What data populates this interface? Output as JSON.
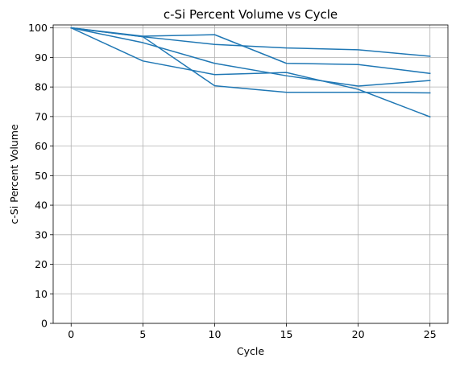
{
  "chart_data": {
    "type": "line",
    "title": "c-Si Percent Volume vs Cycle",
    "xlabel": "Cycle",
    "ylabel": "c-Si Percent Volume",
    "x": [
      0,
      5,
      10,
      15,
      20,
      25
    ],
    "xticks": [
      0,
      5,
      10,
      15,
      20,
      25
    ],
    "yticks": [
      0,
      10,
      20,
      30,
      40,
      50,
      60,
      70,
      80,
      90,
      100
    ],
    "xlim": [
      -1.25,
      26.25
    ],
    "ylim": [
      0,
      101
    ],
    "grid": true,
    "line_color": "#1f77b4",
    "series": [
      {
        "values": [
          100,
          97.2,
          97.7,
          88.0,
          87.6,
          84.6
        ]
      },
      {
        "values": [
          100,
          97.0,
          94.4,
          93.2,
          92.6,
          90.4
        ]
      },
      {
        "values": [
          100,
          95.0,
          88.0,
          83.8,
          80.3,
          82.2
        ]
      },
      {
        "values": [
          100,
          97.0,
          80.4,
          78.2,
          78.2,
          78.0
        ]
      },
      {
        "values": [
          100,
          88.8,
          84.2,
          84.9,
          79.2,
          69.9
        ]
      }
    ]
  }
}
